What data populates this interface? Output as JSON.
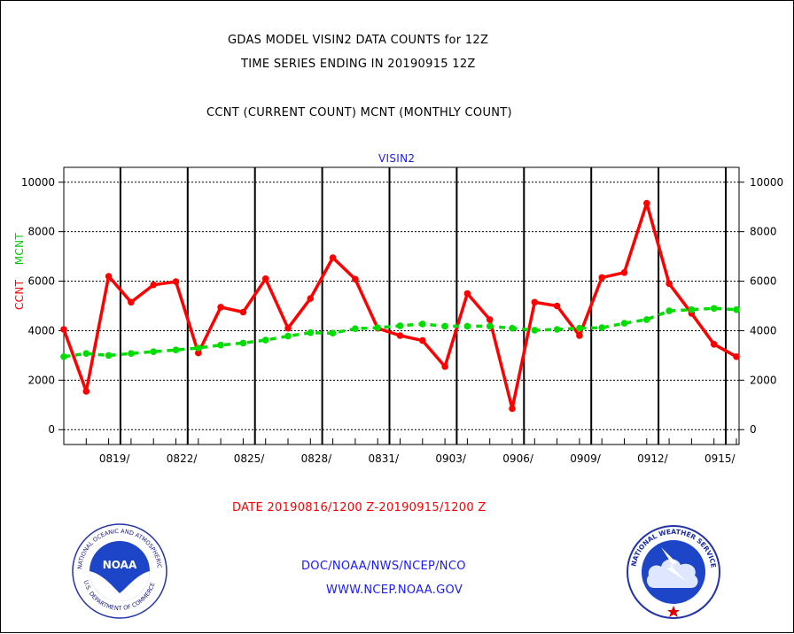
{
  "header": {
    "title_line1": "GDAS MODEL VISIN2 DATA COUNTS for 12Z",
    "title_line2": "TIME SERIES ENDING IN 20190915 12Z",
    "subtitle": "CCNT (CURRENT COUNT) MCNT (MONTHLY COUNT)"
  },
  "footer": {
    "date_range": "DATE 20190816/1200 Z-20190915/1200 Z",
    "org": "DOC/NOAA/NWS/NCEP/NCO",
    "url": "WWW.NCEP.NOAA.GOV"
  },
  "logos": {
    "left": "noaa-seal",
    "right": "nws-seal",
    "noaa_text": "NOAA",
    "noaa_ring_text": "NATIONAL OCEANIC AND ATMOSPHERIC ADMINISTRATION",
    "noaa_ring_text_bottom": "U.S. DEPARTMENT OF COMMERCE",
    "nws_ring_text": "NATIONAL WEATHER SERVICE"
  },
  "colors": {
    "ccnt": "#ff0000",
    "mcnt": "#00dd00",
    "text": "#000000",
    "footer_link": "#1a1aff",
    "date_text": "#ff0000"
  },
  "chart_data": {
    "type": "line",
    "panel_label": "VISIN2",
    "ylabel_ccnt": "CCNT",
    "ylabel_mcnt": "MCNT",
    "ylim": [
      -600,
      10600
    ],
    "y_ticks": [
      0,
      2000,
      4000,
      6000,
      8000,
      10000
    ],
    "y_tick_labels": [
      "0",
      "2000",
      "4000",
      "6000",
      "8000",
      "10000"
    ],
    "x_tick_labels": [
      "0819/",
      "0822/",
      "0825/",
      "0828/",
      "0831/",
      "0903/",
      "0906/",
      "0909/",
      "0912/",
      "0915/"
    ],
    "grid": true,
    "dates": [
      "0816",
      "0817",
      "0818",
      "0819",
      "0820",
      "0821",
      "0822",
      "0823",
      "0824",
      "0825",
      "0826",
      "0827",
      "0828",
      "0829",
      "0830",
      "0831",
      "0901",
      "0902",
      "0903",
      "0904",
      "0905",
      "0906",
      "0907",
      "0908",
      "0909",
      "0910",
      "0911",
      "0912",
      "0913",
      "0914",
      "0915"
    ],
    "series": [
      {
        "name": "CCNT",
        "style": "solid",
        "values": [
          4050,
          1550,
          6200,
          5150,
          5850,
          5980,
          3100,
          4950,
          4750,
          6100,
          4100,
          5300,
          6950,
          6080,
          4100,
          3800,
          3600,
          2550,
          5500,
          4450,
          850,
          5150,
          5000,
          3800,
          6150,
          6350,
          9150,
          5900,
          4700,
          3450,
          2950
        ]
      },
      {
        "name": "MCNT",
        "style": "dashed",
        "values": [
          2950,
          3080,
          3000,
          3080,
          3150,
          3220,
          3300,
          3420,
          3500,
          3620,
          3780,
          3920,
          3900,
          4080,
          4120,
          4200,
          4270,
          4180,
          4180,
          4180,
          4100,
          4020,
          4050,
          4100,
          4120,
          4300,
          4450,
          4800,
          4850,
          4900,
          4850
        ]
      }
    ]
  }
}
